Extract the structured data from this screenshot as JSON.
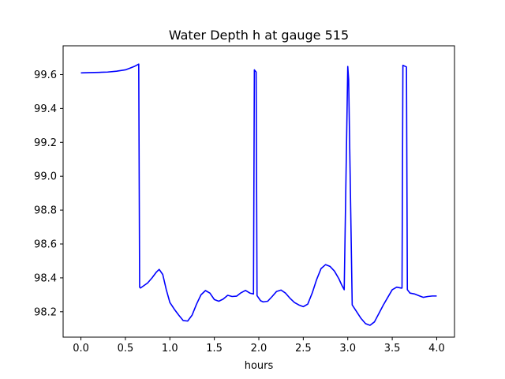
{
  "chart_data": {
    "type": "line",
    "title": "Water Depth h at gauge 515",
    "xlabel": "hours",
    "ylabel": "",
    "xlim": [
      -0.2,
      4.2
    ],
    "ylim": [
      98.05,
      99.77
    ],
    "xticks": [
      0.0,
      0.5,
      1.0,
      1.5,
      2.0,
      2.5,
      3.0,
      3.5,
      4.0
    ],
    "xtick_labels": [
      "0.0",
      "0.5",
      "1.0",
      "1.5",
      "2.0",
      "2.5",
      "3.0",
      "3.5",
      "4.0"
    ],
    "yticks": [
      98.2,
      98.4,
      98.6,
      98.8,
      99.0,
      99.2,
      99.4,
      99.6
    ],
    "ytick_labels": [
      "98.2",
      "98.4",
      "98.6",
      "98.8",
      "99.0",
      "99.2",
      "99.4",
      "99.6"
    ],
    "grid": false,
    "series": [
      {
        "color": "#0000ff",
        "x": [
          0.0,
          0.1,
          0.2,
          0.3,
          0.4,
          0.5,
          0.55,
          0.6,
          0.65,
          0.66,
          0.67,
          0.75,
          0.8,
          0.85,
          0.88,
          0.92,
          0.96,
          1.0,
          1.05,
          1.1,
          1.15,
          1.2,
          1.25,
          1.3,
          1.35,
          1.4,
          1.45,
          1.5,
          1.55,
          1.6,
          1.65,
          1.7,
          1.75,
          1.8,
          1.85,
          1.9,
          1.94,
          1.95,
          1.97,
          1.98,
          2.02,
          2.05,
          2.1,
          2.15,
          2.2,
          2.25,
          2.3,
          2.35,
          2.4,
          2.45,
          2.5,
          2.55,
          2.6,
          2.65,
          2.7,
          2.75,
          2.8,
          2.85,
          2.9,
          2.93,
          2.96,
          3.0,
          3.01,
          3.05,
          3.1,
          3.15,
          3.2,
          3.25,
          3.3,
          3.35,
          3.4,
          3.45,
          3.5,
          3.55,
          3.6,
          3.61,
          3.62,
          3.66,
          3.67,
          3.7,
          3.75,
          3.8,
          3.85,
          3.9,
          3.95,
          4.0
        ],
        "y": [
          99.61,
          99.612,
          99.613,
          99.615,
          99.62,
          99.628,
          99.638,
          99.648,
          99.662,
          98.345,
          98.34,
          98.37,
          98.4,
          98.435,
          98.45,
          98.42,
          98.33,
          98.255,
          98.215,
          98.18,
          98.148,
          98.145,
          98.18,
          98.245,
          98.3,
          98.325,
          98.31,
          98.272,
          98.262,
          98.275,
          98.297,
          98.29,
          98.292,
          98.312,
          98.326,
          98.31,
          98.305,
          99.628,
          99.615,
          98.295,
          98.265,
          98.258,
          98.262,
          98.29,
          98.32,
          98.328,
          98.31,
          98.28,
          98.255,
          98.24,
          98.23,
          98.245,
          98.31,
          98.39,
          98.455,
          98.478,
          98.468,
          98.44,
          98.395,
          98.36,
          98.33,
          99.648,
          99.57,
          98.24,
          98.2,
          98.16,
          98.13,
          98.12,
          98.14,
          98.19,
          98.24,
          98.285,
          98.33,
          98.345,
          98.34,
          98.34,
          99.655,
          99.645,
          98.33,
          98.31,
          98.305,
          98.295,
          98.285,
          98.29,
          98.293,
          98.293
        ]
      }
    ]
  }
}
